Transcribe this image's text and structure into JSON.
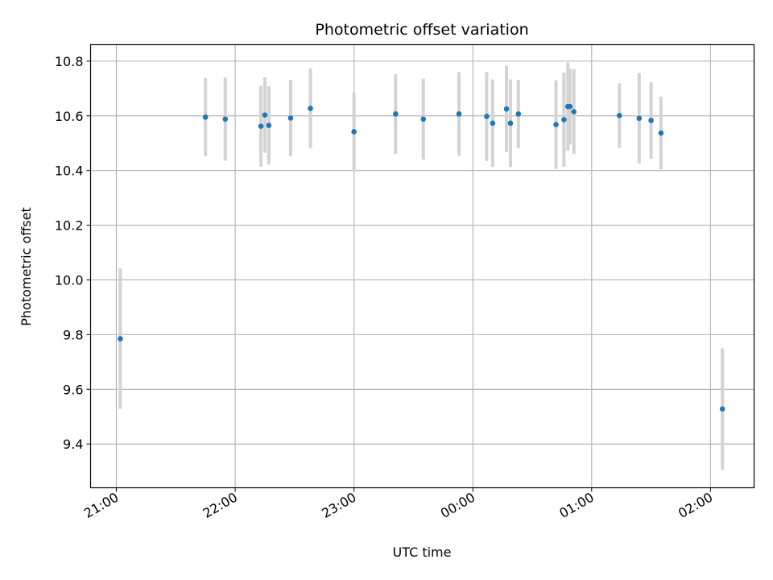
{
  "chart_data": {
    "type": "scatter",
    "title": "Photometric offset variation",
    "xlabel": "UTC time",
    "ylabel": "Photometric offset",
    "grid": true,
    "x_axis": {
      "kind": "time",
      "range": [
        "20:47",
        "02:22"
      ],
      "ticks": [
        "21:00",
        "22:00",
        "23:00",
        "00:00",
        "01:00",
        "02:00"
      ],
      "tick_label_rotation": 30
    },
    "y_axis": {
      "range": [
        9.24,
        10.86
      ],
      "ticks": [
        "9.4",
        "9.6",
        "9.8",
        "10.0",
        "10.2",
        "10.4",
        "10.6",
        "10.8"
      ]
    },
    "series": [
      {
        "color": "#1f77b4",
        "error_bar_color": "#d3d3d3",
        "points": [
          {
            "x": "21:02",
            "y": 9.785,
            "err": 0.257
          },
          {
            "x": "21:45",
            "y": 10.595,
            "err": 0.143
          },
          {
            "x": "21:55",
            "y": 10.588,
            "err": 0.152
          },
          {
            "x": "22:13",
            "y": 10.562,
            "err": 0.148
          },
          {
            "x": "22:15",
            "y": 10.603,
            "err": 0.138
          },
          {
            "x": "22:17",
            "y": 10.565,
            "err": 0.143
          },
          {
            "x": "22:28",
            "y": 10.592,
            "err": 0.14
          },
          {
            "x": "22:38",
            "y": 10.627,
            "err": 0.146
          },
          {
            "x": "23:00",
            "y": 10.542,
            "err": 0.143
          },
          {
            "x": "23:21",
            "y": 10.607,
            "err": 0.146
          },
          {
            "x": "23:35",
            "y": 10.588,
            "err": 0.148
          },
          {
            "x": "23:53",
            "y": 10.607,
            "err": 0.153
          },
          {
            "x": "00:07",
            "y": 10.598,
            "err": 0.163
          },
          {
            "x": "00:10",
            "y": 10.573,
            "err": 0.16
          },
          {
            "x": "00:17",
            "y": 10.625,
            "err": 0.158
          },
          {
            "x": "00:19",
            "y": 10.573,
            "err": 0.16
          },
          {
            "x": "00:23",
            "y": 10.607,
            "err": 0.125
          },
          {
            "x": "00:42",
            "y": 10.568,
            "err": 0.162
          },
          {
            "x": "00:46",
            "y": 10.586,
            "err": 0.172
          },
          {
            "x": "00:48",
            "y": 10.634,
            "err": 0.161
          },
          {
            "x": "00:49",
            "y": 10.634,
            "err": 0.138
          },
          {
            "x": "00:51",
            "y": 10.615,
            "err": 0.155
          },
          {
            "x": "01:14",
            "y": 10.601,
            "err": 0.118
          },
          {
            "x": "01:24",
            "y": 10.591,
            "err": 0.165
          },
          {
            "x": "01:30",
            "y": 10.583,
            "err": 0.14
          },
          {
            "x": "01:35",
            "y": 10.537,
            "err": 0.133
          },
          {
            "x": "02:06",
            "y": 9.528,
            "err": 0.222
          }
        ]
      }
    ]
  }
}
